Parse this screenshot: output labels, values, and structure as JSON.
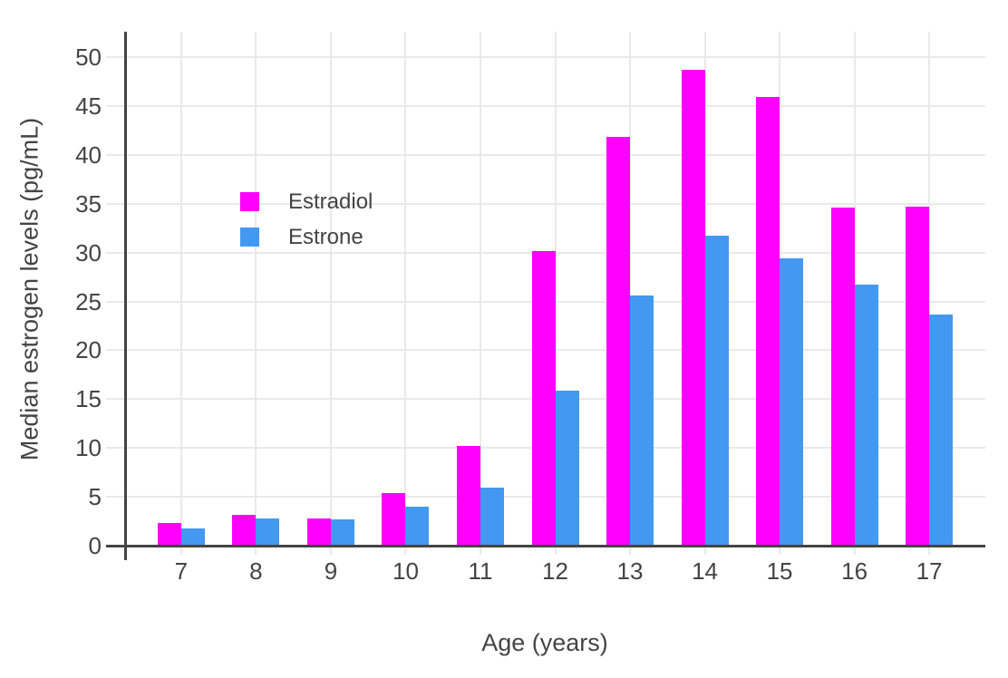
{
  "chart_data": {
    "type": "bar",
    "title": "",
    "xlabel": "Age (years)",
    "ylabel": "Median estrogen levels (pg/mL)",
    "categories": [
      "7",
      "8",
      "9",
      "10",
      "11",
      "12",
      "13",
      "14",
      "15",
      "16",
      "17"
    ],
    "series": [
      {
        "name": "Estradiol",
        "color": "#FF00FF",
        "values": [
          2.2,
          3.1,
          2.7,
          5.3,
          10.1,
          30.1,
          41.7,
          48.6,
          45.8,
          34.5,
          34.6
        ]
      },
      {
        "name": "Estrone",
        "color": "#4398F0",
        "values": [
          1.7,
          2.7,
          2.6,
          3.9,
          5.8,
          15.8,
          25.5,
          31.6,
          29.3,
          26.6,
          23.6
        ]
      }
    ],
    "yticks": [
      0,
      5,
      10,
      15,
      20,
      25,
      30,
      35,
      40,
      45,
      50
    ],
    "ylim": [
      0,
      52.6
    ],
    "xlim": [
      -0.75,
      10.75
    ],
    "grid": true,
    "legend_position": "inside-top-left",
    "colors": {
      "axis": "#444444",
      "grid": "#E9E9E9",
      "text": "#444444",
      "background": "#FFFFFF"
    }
  }
}
